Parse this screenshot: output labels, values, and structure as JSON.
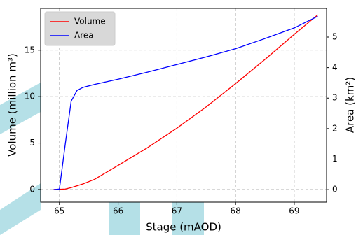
{
  "chart_data": {
    "type": "line",
    "x_label": "Stage (mAOD)",
    "y_label": "Volume (million m³)",
    "y2_label": "Area (km²)",
    "x": [
      64.9,
      65.0,
      65.1,
      65.2,
      65.3,
      65.4,
      65.6,
      66.0,
      66.5,
      67.0,
      67.5,
      68.0,
      68.5,
      69.0,
      69.4
    ],
    "series": [
      {
        "name": "Volume",
        "color": "#ff0000",
        "values": [
          0,
          0.02,
          0.05,
          0.2,
          0.4,
          0.6,
          1.1,
          2.6,
          4.5,
          6.6,
          8.9,
          11.4,
          14.0,
          16.7,
          18.8
        ]
      },
      {
        "name": "Area",
        "color": "#0000ff",
        "axis": "y2",
        "values": [
          0,
          0.02,
          1.5,
          2.9,
          3.25,
          3.35,
          3.45,
          3.62,
          3.85,
          4.1,
          4.35,
          4.62,
          4.95,
          5.3,
          5.68
        ]
      }
    ],
    "xlim": [
      64.68,
      69.55
    ],
    "xticks": [
      65,
      66,
      67,
      68,
      69
    ],
    "ylim": [
      -1.36,
      19.5
    ],
    "yticks": [
      0,
      5,
      10,
      15
    ],
    "y2lim": [
      -0.41,
      5.94
    ],
    "y2ticks": [
      0,
      1,
      2,
      3,
      4,
      5
    ],
    "grid": true,
    "legend": "upper left"
  }
}
